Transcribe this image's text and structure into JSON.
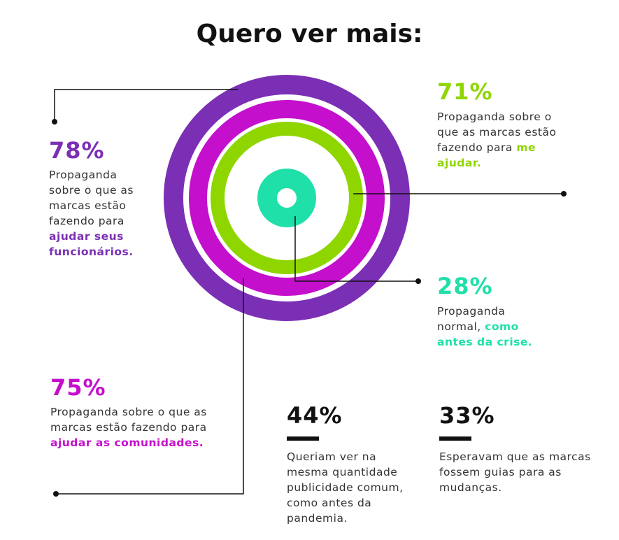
{
  "title": "Quero ver mais:",
  "colors": {
    "purple": "#7b2fb5",
    "magenta": "#c40fcc",
    "lime": "#8fd600",
    "teal": "#1ee0a8",
    "dark": "#111111"
  },
  "stats": {
    "s78": {
      "value": "78%",
      "text": "Propaganda sobre o que as marcas estão fazendo para ",
      "highlight": "ajudar seus funcionários."
    },
    "s71": {
      "value": "71%",
      "text": "Propaganda sobre o que as marcas estão fazendo para ",
      "highlight": "me ajudar."
    },
    "s28": {
      "value": "28%",
      "text": "Propaganda normal, ",
      "highlight": "como antes da crise."
    },
    "s75": {
      "value": "75%",
      "text": "Propaganda sobre o que as marcas estão fazendo para ",
      "highlight": "ajudar as comunidades."
    },
    "s44": {
      "value": "44%",
      "text": "Queriam ver na mesma quantidade publicidade comum, como antes da pandemia."
    },
    "s33": {
      "value": "33%",
      "text": "Esperavam que as marcas fossem guias para as mudanças."
    }
  }
}
